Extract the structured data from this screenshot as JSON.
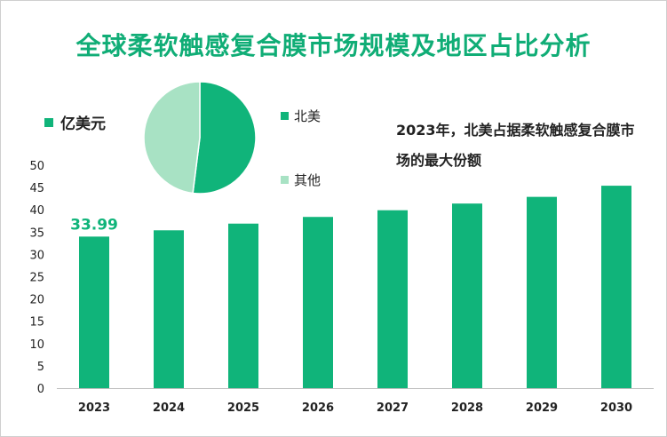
{
  "title": "全球柔软触感复合膜市场规模及地区占比分析",
  "unit_label": "亿美元",
  "annotation": "2023年，北美占据柔软触感复合膜市场的最大份额",
  "colors": {
    "bar": "#10b47a",
    "pie_north_america": "#10b47a",
    "pie_other": "#a8e2c4",
    "title": "#10ad76"
  },
  "chart_data": [
    {
      "type": "bar",
      "title": "全球柔软触感复合膜市场规模",
      "ylabel": "亿美元",
      "categories": [
        "2023",
        "2024",
        "2025",
        "2026",
        "2027",
        "2028",
        "2029",
        "2030"
      ],
      "values": [
        33.99,
        35.4,
        36.9,
        38.4,
        39.9,
        41.4,
        42.9,
        45.4
      ],
      "data_labels": {
        "2023": "33.99"
      },
      "ylim": [
        0,
        50
      ],
      "yticks": [
        0,
        5,
        10,
        15,
        20,
        25,
        30,
        35,
        40,
        45,
        50
      ],
      "grid": false
    },
    {
      "type": "pie",
      "title": "地区占比",
      "labels": [
        "北美",
        "其他"
      ],
      "values": [
        52,
        48
      ]
    }
  ]
}
